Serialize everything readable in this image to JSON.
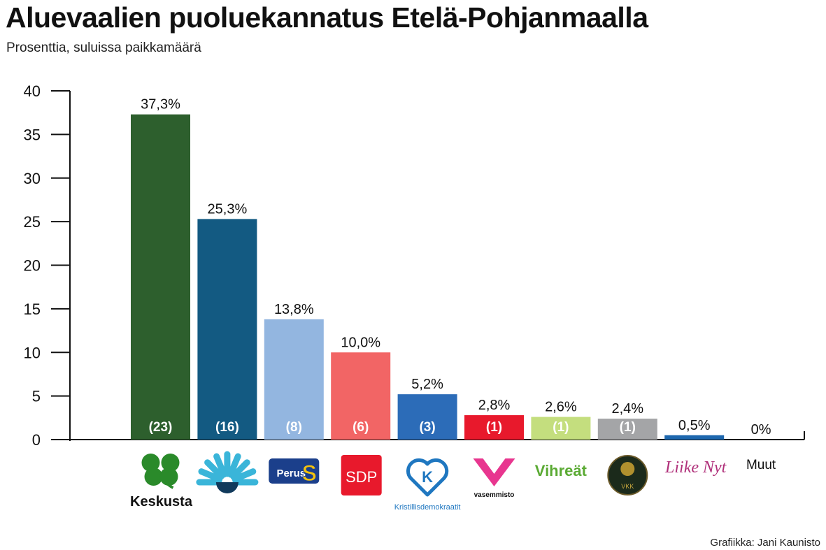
{
  "title": "Aluevaalien puoluekannatus Etelä-Pohjanmaalla",
  "subtitle": "Prosenttia, suluissa paikkamäärä",
  "credit": "Grafiikka: Jani Kaunisto",
  "chart_data": {
    "type": "bar",
    "title": "Aluevaalien puoluekannatus Etelä-Pohjanmaalla",
    "subtitle": "Prosenttia, suluissa paikkamäärä",
    "ylim": [
      0,
      40
    ],
    "yticks": [
      0,
      5,
      10,
      15,
      20,
      25,
      30,
      35,
      40
    ],
    "grid": false,
    "bars": [
      {
        "party": "Keskusta",
        "logo": "keskusta-clover-logo",
        "value": 37.3,
        "label": "37,3%",
        "seats": "(23)",
        "color": "#2d5f2d",
        "logo_text": "Keskusta"
      },
      {
        "party": "Kokoomus",
        "logo": "kokoomus-logo",
        "value": 25.3,
        "label": "25,3%",
        "seats": "(16)",
        "color": "#135a82",
        "logo_text": ""
      },
      {
        "party": "Perussuomalaiset",
        "logo": "perussuomalaiset-logo",
        "value": 13.8,
        "label": "13,8%",
        "seats": "(8)",
        "color": "#93b6e0",
        "logo_text": "PerusS"
      },
      {
        "party": "SDP",
        "logo": "sdp-logo",
        "value": 10.0,
        "label": "10,0%",
        "seats": "(6)",
        "color": "#f26565",
        "logo_text": "SDP"
      },
      {
        "party": "Kristillisdemokraatit",
        "logo": "kd-heart-logo",
        "value": 5.2,
        "label": "5,2%",
        "seats": "(3)",
        "color": "#2c6cb8",
        "logo_text": "Kristillisdemokraatit"
      },
      {
        "party": "Vasemmistoliitto",
        "logo": "vasemmisto-logo",
        "value": 2.8,
        "label": "2,8%",
        "seats": "(1)",
        "color": "#e8192c",
        "logo_text": "vasemmisto"
      },
      {
        "party": "Vihreät",
        "logo": "vihreat-logo",
        "value": 2.6,
        "label": "2,6%",
        "seats": "(1)",
        "color": "#c4de7e",
        "logo_text": "Vihreät"
      },
      {
        "party": "VKK",
        "logo": "vkk-lion-logo",
        "value": 2.4,
        "label": "2,4%",
        "seats": "(1)",
        "color": "#a4a5a7",
        "logo_text": "VKK"
      },
      {
        "party": "Liike Nyt",
        "logo": "liike-nyt-logo",
        "value": 0.5,
        "label": "0,5%",
        "seats": "",
        "color": "#1d67ae",
        "logo_text": "Liike Nyt"
      },
      {
        "party": "Muut",
        "logo": "",
        "value": 0,
        "label": "0%",
        "seats": "",
        "color": "#cccccc",
        "logo_text": "Muut"
      }
    ]
  }
}
